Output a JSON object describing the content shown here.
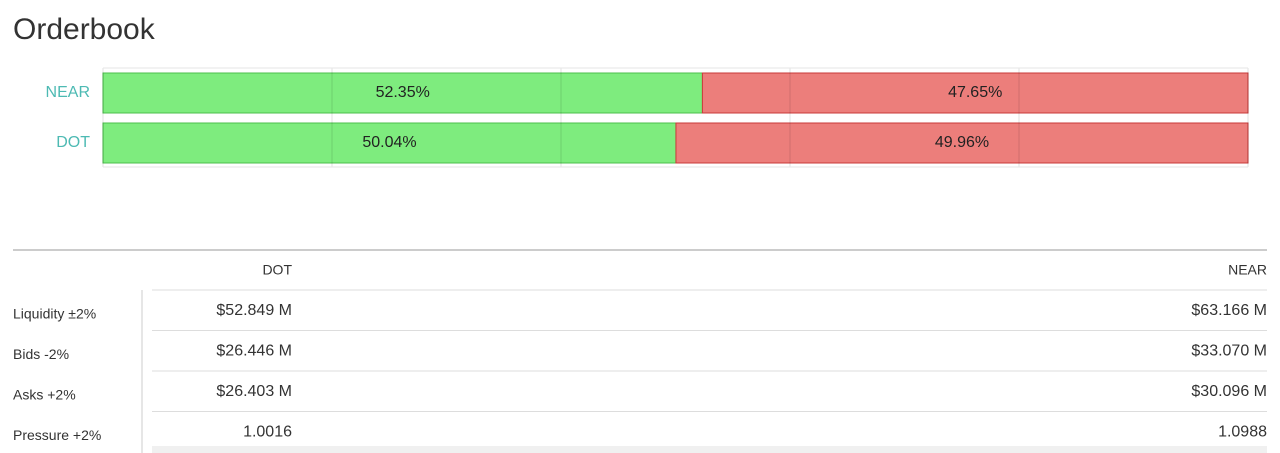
{
  "title": "Orderbook",
  "chart_data": {
    "type": "bar",
    "orientation": "horizontal",
    "stacked": true,
    "categories": [
      "NEAR",
      "DOT"
    ],
    "series": [
      {
        "color": "#7eec7e",
        "values": [
          52.35,
          50.04
        ],
        "value_labels": [
          "52.35%",
          "50.04%"
        ]
      },
      {
        "color": "#ec7e7b",
        "values": [
          47.65,
          49.96
        ],
        "value_labels": [
          "47.65%",
          "49.96%"
        ]
      }
    ],
    "xlim": [
      0,
      100
    ],
    "xticks": [
      0,
      20,
      40,
      60,
      80,
      100
    ],
    "grid": true
  },
  "table": {
    "columns": [
      "DOT",
      "NEAR"
    ],
    "rows": [
      {
        "label": "Liquidity ±2%",
        "values": [
          "$52.849 M",
          "$63.166 M"
        ]
      },
      {
        "label": "Bids -2%",
        "values": [
          "$26.446 M",
          "$33.070 M"
        ]
      },
      {
        "label": "Asks +2%",
        "values": [
          "$26.403 M",
          "$30.096 M"
        ]
      },
      {
        "label": "Pressure +2%",
        "values": [
          "1.0016",
          "1.0988"
        ]
      }
    ]
  }
}
